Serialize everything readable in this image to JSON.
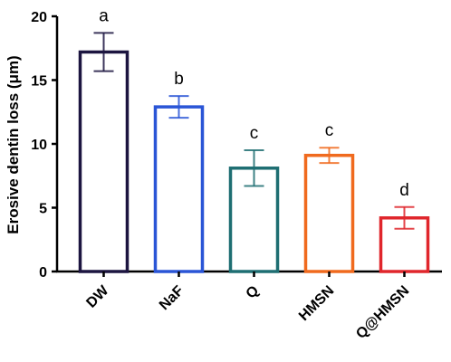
{
  "chart_data": {
    "type": "bar",
    "ylabel": "Erosive dentin loss (μm)",
    "xlabel": "",
    "ylim": [
      0,
      20
    ],
    "yticks": [
      "0",
      "5",
      "10",
      "15",
      "20"
    ],
    "grid": false,
    "categories": [
      "DW",
      "NaF",
      "Q",
      "HMSN",
      "Q@HMSN"
    ],
    "values": [
      17.2,
      12.9,
      8.1,
      9.1,
      4.2
    ],
    "errors": [
      1.5,
      0.85,
      1.4,
      0.6,
      0.85
    ],
    "significance_letters": [
      "a",
      "b",
      "c",
      "c",
      "d"
    ],
    "colors": [
      "#1c1540",
      "#2a55d6",
      "#1e6e72",
      "#f06a1e",
      "#e0262c"
    ]
  }
}
